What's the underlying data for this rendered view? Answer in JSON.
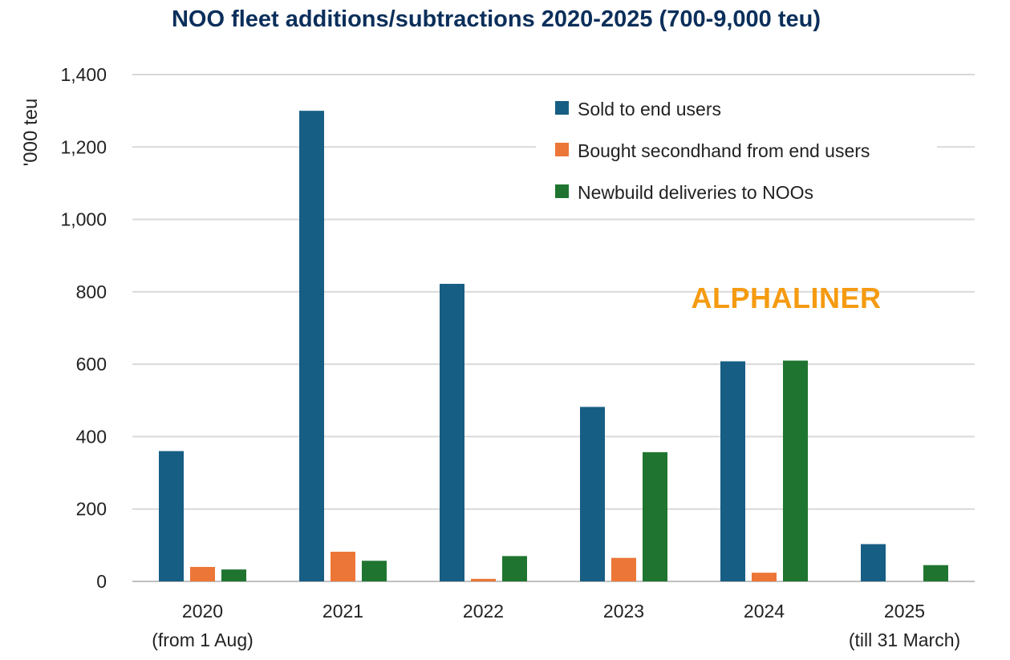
{
  "chart_data": {
    "type": "bar",
    "title": "NOO fleet additions/subtractions 2020-2025 (700-9,000 teu)",
    "ylabel": "'000 teu",
    "xlabel": "",
    "ylim": [
      0,
      1400
    ],
    "yticks": [
      0,
      200,
      400,
      600,
      800,
      1000,
      1200,
      1400
    ],
    "yticks_labels": [
      "0",
      "200",
      "400",
      "600",
      "800",
      "1,000",
      "1,200",
      "1,400"
    ],
    "categories": [
      {
        "line1": "2020",
        "line2": "(from 1 Aug)"
      },
      {
        "line1": "2021",
        "line2": ""
      },
      {
        "line1": "2022",
        "line2": ""
      },
      {
        "line1": "2023",
        "line2": ""
      },
      {
        "line1": "2024",
        "line2": ""
      },
      {
        "line1": "2025",
        "line2": "(till 31 March)"
      }
    ],
    "series": [
      {
        "name": "Sold to end users",
        "color": "#175e84",
        "values": [
          360,
          1300,
          822,
          482,
          608,
          103
        ]
      },
      {
        "name": "Bought secondhand from end users",
        "color": "#ec7637",
        "values": [
          40,
          82,
          7,
          65,
          24,
          0
        ]
      },
      {
        "name": "Newbuild deliveries to NOOs",
        "color": "#1f7530",
        "values": [
          33,
          57,
          70,
          357,
          610,
          45
        ]
      }
    ],
    "grid": true,
    "legend_position": "top-right",
    "watermark": "ALPHALINER"
  }
}
